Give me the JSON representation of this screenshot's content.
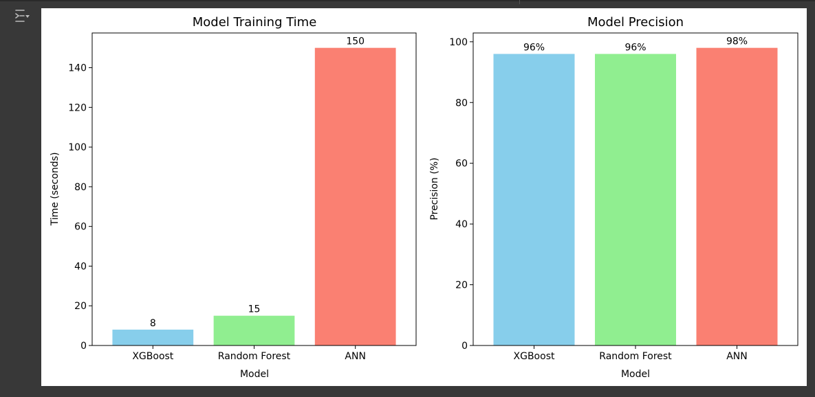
{
  "output_toggle": {
    "icon": "output-toggle-icon"
  },
  "chart_data": [
    {
      "type": "bar",
      "title": "Model Training Time",
      "xlabel": "Model",
      "ylabel": "Time (seconds)",
      "categories": [
        "XGBoost",
        "Random Forest",
        "ANN"
      ],
      "values": [
        8,
        15,
        150
      ],
      "value_labels": [
        "8",
        "15",
        "150"
      ],
      "colors": [
        "#87ceeb",
        "#90ee90",
        "#fa8072"
      ],
      "ylim": [
        0,
        157.5
      ],
      "yticks": [
        0,
        20,
        40,
        60,
        80,
        100,
        120,
        140
      ],
      "grid": false
    },
    {
      "type": "bar",
      "title": "Model Precision",
      "xlabel": "Model",
      "ylabel": "Precision (%)",
      "categories": [
        "XGBoost",
        "Random Forest",
        "ANN"
      ],
      "values": [
        96,
        96,
        98
      ],
      "value_labels": [
        "96%",
        "96%",
        "98%"
      ],
      "colors": [
        "#87ceeb",
        "#90ee90",
        "#fa8072"
      ],
      "ylim": [
        0,
        102.9
      ],
      "yticks": [
        0,
        20,
        40,
        60,
        80,
        100
      ],
      "grid": false
    }
  ]
}
